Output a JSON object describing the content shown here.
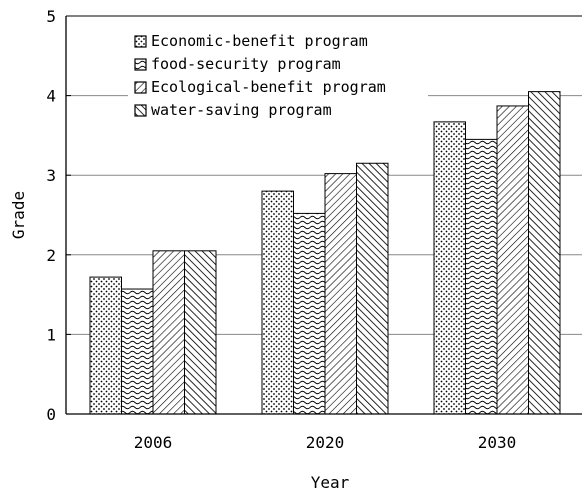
{
  "chart_data": {
    "type": "bar",
    "xlabel": "Year",
    "ylabel": "Grade",
    "ylim": [
      0,
      5
    ],
    "yticks": [
      0,
      1,
      2,
      3,
      4,
      5
    ],
    "grid": "horizontal",
    "legend_position": "top-left",
    "categories": [
      "2006",
      "2020",
      "2030"
    ],
    "series": [
      {
        "name": "Economic-benefit program",
        "values": [
          1.72,
          2.8,
          3.67
        ],
        "pattern": "dots"
      },
      {
        "name": "food-security program",
        "values": [
          1.57,
          2.52,
          3.45
        ],
        "pattern": "waves"
      },
      {
        "name": "Ecological-benefit program",
        "values": [
          2.05,
          3.02,
          3.87
        ],
        "pattern": "diagonal-right"
      },
      {
        "name": "water-saving program",
        "values": [
          2.05,
          3.15,
          4.05
        ],
        "pattern": "diagonal-left"
      }
    ]
  }
}
